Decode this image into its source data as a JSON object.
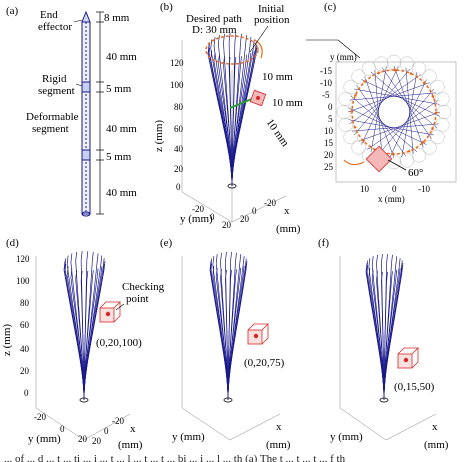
{
  "panels": {
    "a": {
      "tag": "(a)",
      "end_effector": [
        "End",
        "effector"
      ],
      "rigid": [
        "Rigid",
        "segment"
      ],
      "deformable": [
        "Deformable",
        "segment"
      ],
      "dims": [
        "8 mm",
        "40 mm",
        "5 mm",
        "40 mm",
        "5 mm",
        "40 mm"
      ]
    },
    "b": {
      "tag": "(b)",
      "desired": [
        "Desired path",
        "D: 30 mm"
      ],
      "initial": [
        "Initial",
        "position"
      ],
      "mm10": [
        "10 mm",
        "10 mm",
        "10 mm"
      ],
      "zlabel": "z (mm)",
      "ylabel": "y (mm)",
      "xlabel": [
        "x",
        "(mm)"
      ],
      "zticks": [
        "120",
        "100",
        "80",
        "60",
        "40",
        "20",
        "0"
      ],
      "yticks": [
        "-20",
        "0",
        "20"
      ],
      "xticks": [
        "-20",
        "0",
        "20"
      ]
    },
    "c": {
      "tag": "(c)",
      "ylabel": "y (mm)",
      "xlabel": "x (mm)",
      "yticks": [
        "-15",
        "-10",
        "-5",
        "0",
        "5",
        "10",
        "15",
        "20",
        "25"
      ],
      "xticks": [
        "10",
        "0",
        "-10"
      ],
      "angle": "60°"
    },
    "d": {
      "tag": "(d)",
      "checking": [
        "Checking",
        "point"
      ],
      "coord": "(0,20,100)",
      "zlabel": "z (mm)",
      "ylabel": "y (mm)",
      "xlabel": [
        "x",
        "(mm)"
      ],
      "zticks": [
        "120",
        "100",
        "80",
        "60",
        "40",
        "20",
        "0"
      ],
      "yticks": [
        "-20",
        "0",
        "20"
      ],
      "xticks": [
        "-20",
        "0",
        "20"
      ]
    },
    "e": {
      "tag": "(e)",
      "coord": "(0,20,75)",
      "ylabel": "y (mm)",
      "xlabel": [
        "x",
        "(mm)"
      ]
    },
    "f": {
      "tag": "(f)",
      "coord": "(0,15,50)",
      "ylabel": "y (mm)",
      "xlabel": [
        "x",
        "(mm)"
      ]
    }
  },
  "caption_fragment": "... of ... d ... t ... ti ... i ... t ... l ... t ... t ... bi ... i ... l ... th (a) The t ... t ... t ... f th",
  "colors": {
    "robot": "#1a1a8c",
    "path": "#e86a1c",
    "cube": "#d62828",
    "green": "#2ca02c"
  }
}
